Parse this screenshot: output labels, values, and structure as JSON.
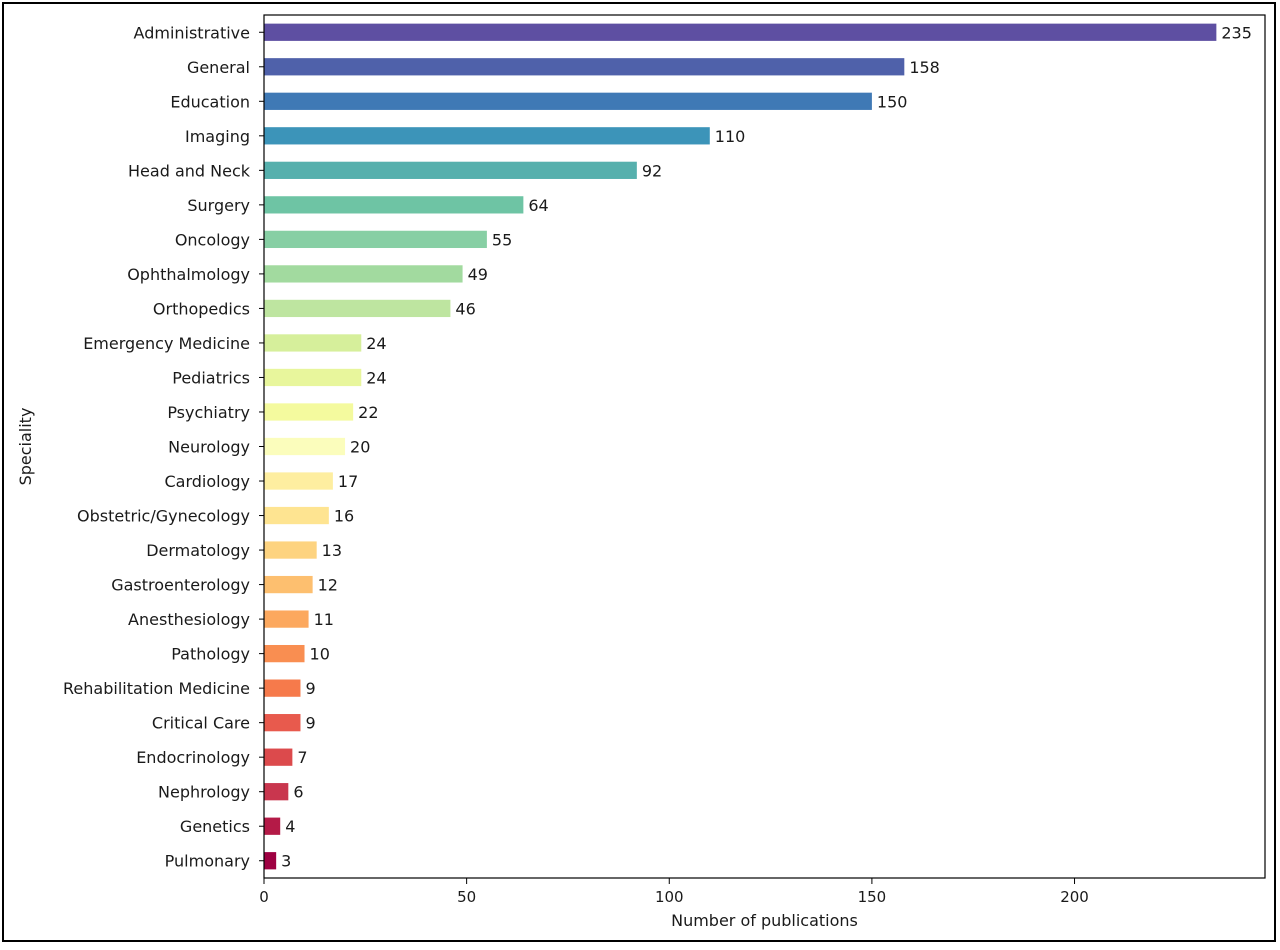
{
  "chart_data": {
    "type": "bar",
    "orientation": "horizontal",
    "xlabel": "Number of publications",
    "ylabel": "Speciality",
    "xlim": [
      0,
      247
    ],
    "xticks": [
      0,
      50,
      100,
      150,
      200
    ],
    "grid": false,
    "legend": "none",
    "colormap": "Spectral_r",
    "categories": [
      "Administrative",
      "General",
      "Education",
      "Imaging",
      "Head and Neck",
      "Surgery",
      "Oncology",
      "Ophthalmology",
      "Orthopedics",
      "Emergency Medicine",
      "Pediatrics",
      "Psychiatry",
      "Neurology",
      "Cardiology",
      "Obstetric/Gynecology",
      "Dermatology",
      "Gastroenterology",
      "Anesthesiology",
      "Pathology",
      "Rehabilitation Medicine",
      "Critical Care",
      "Endocrinology",
      "Nephrology",
      "Genetics",
      "Pulmonary"
    ],
    "values": [
      235,
      158,
      150,
      110,
      92,
      64,
      55,
      49,
      46,
      24,
      24,
      22,
      20,
      17,
      16,
      13,
      12,
      11,
      10,
      9,
      9,
      7,
      6,
      4,
      3
    ],
    "data_labels": [
      "235",
      "158",
      "150",
      "110",
      "92",
      "64",
      "55",
      "49",
      "46",
      "24",
      "24",
      "22",
      "20",
      "17",
      "16",
      "13",
      "12",
      "11",
      "10",
      "9",
      "9",
      "7",
      "6",
      "4",
      "3"
    ],
    "colors": [
      "#5e4fa2",
      "#4f61aa",
      "#3f79b5",
      "#3c94b9",
      "#56b0ad",
      "#6ec4a4",
      "#87cfa4",
      "#a2da9f",
      "#bee5a0",
      "#d6ef9b",
      "#e8f69c",
      "#f4fa9e",
      "#fbfdbc",
      "#feeea0",
      "#fee491",
      "#fdd380",
      "#fdbf6f",
      "#fca85e",
      "#f98e51",
      "#f67a4b",
      "#e85a4d",
      "#dc4a4c",
      "#c9364e",
      "#b41a47",
      "#9e0142"
    ]
  }
}
